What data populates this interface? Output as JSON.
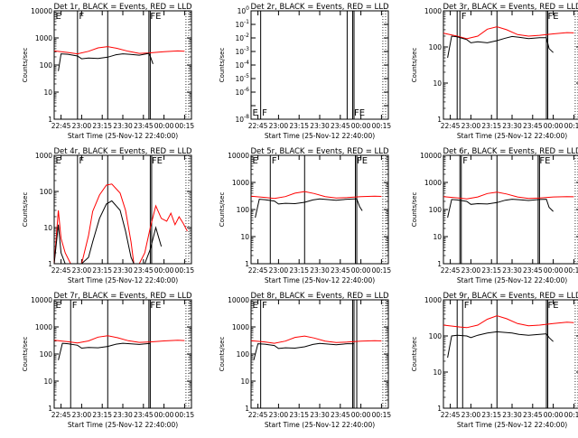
{
  "colors": {
    "events": "#000000",
    "lld": "#ff0000",
    "background": "#ffffff",
    "axis": "#000000"
  },
  "x_tick_labels": [
    "22:45",
    "23:00",
    "23:15",
    "23:30",
    "23:45",
    "00:00",
    "00:15"
  ],
  "x_axis_label": "Start Time (25-Nov-12 22:40:00)",
  "y_axis_label": "Counts/sec",
  "chart_data": [
    {
      "type": "line",
      "title": "Det 1r, BLACK = Events, RED = LLD",
      "xlabel": "Start Time (25-Nov-12 22:40:00)",
      "ylabel": "Counts/sec",
      "xlim_minutes": [
        0,
        100
      ],
      "ylim": [
        1,
        10000
      ],
      "yscale": "log",
      "ytick_labels": [
        "1",
        "10",
        "100",
        "1000",
        "10000"
      ],
      "markers": [
        {
          "label": "E",
          "minute": 0
        },
        {
          "label": "F",
          "minute": 17
        },
        {
          "label": "",
          "minute": 39
        },
        {
          "label": "FE",
          "minute": 69
        },
        {
          "label": "",
          "minute": 70
        }
      ],
      "series": [
        {
          "color": "lld",
          "x": [
            0,
            10,
            17,
            25,
            32,
            39,
            46,
            54,
            62,
            69,
            80,
            90,
            95
          ],
          "y": [
            330,
            290,
            260,
            320,
            430,
            480,
            410,
            320,
            270,
            280,
            310,
            330,
            320
          ]
        },
        {
          "color": "events",
          "x": [
            3,
            5,
            10,
            17,
            20,
            25,
            32,
            39,
            45,
            50,
            55,
            62,
            69,
            70,
            72
          ],
          "y": [
            60,
            260,
            250,
            215,
            170,
            180,
            175,
            195,
            240,
            260,
            250,
            230,
            270,
            210,
            110
          ]
        }
      ]
    },
    {
      "type": "line",
      "title": "Det 2r, BLACK = Events, RED = LLD",
      "xlabel": "Start Time (25-Nov-12 22:40:00)",
      "ylabel": "Counts/sec",
      "xlim_minutes": [
        0,
        100
      ],
      "ylim": [
        1e-08,
        1
      ],
      "yscale": "log",
      "ytick_labels": [
        "10^-8",
        "10^-6",
        "10^-5",
        "10^-4",
        "10^-3",
        "10^-2",
        "10^-1",
        "10^0"
      ],
      "markers": [
        {
          "label": "E",
          "minute": 0
        },
        {
          "label": "F",
          "minute": 7
        },
        {
          "label": "",
          "minute": 70
        },
        {
          "label": "FE",
          "minute": 74
        },
        {
          "label": "",
          "minute": 75
        }
      ],
      "series": []
    },
    {
      "type": "line",
      "title": "Det 3r, BLACK = Events, RED = LLD",
      "xlabel": "Start Time (25-Nov-12 22:40:00)",
      "ylabel": "Counts/sec",
      "xlim_minutes": [
        0,
        100
      ],
      "ylim": [
        1,
        1000
      ],
      "yscale": "log",
      "ytick_labels": [
        "1",
        "10",
        "100",
        "1000"
      ],
      "markers": [
        {
          "label": "",
          "minute": 10
        },
        {
          "label": "F",
          "minute": 12
        },
        {
          "label": "",
          "minute": 39
        },
        {
          "label": "FE",
          "minute": 75
        },
        {
          "label": "",
          "minute": 76
        }
      ],
      "series": [
        {
          "color": "lld",
          "x": [
            0,
            10,
            17,
            25,
            32,
            39,
            46,
            54,
            62,
            70,
            80,
            90,
            95
          ],
          "y": [
            240,
            200,
            170,
            200,
            310,
            360,
            300,
            220,
            200,
            210,
            230,
            250,
            245
          ]
        },
        {
          "color": "events",
          "x": [
            3,
            6,
            10,
            17,
            20,
            25,
            32,
            39,
            45,
            50,
            55,
            62,
            70,
            75,
            77,
            80
          ],
          "y": [
            50,
            200,
            190,
            160,
            130,
            140,
            130,
            150,
            175,
            195,
            185,
            170,
            180,
            180,
            90,
            70
          ]
        }
      ]
    },
    {
      "type": "line",
      "title": "Det 4r, BLACK = Events, RED = LLD",
      "xlabel": "Start Time (25-Nov-12 22:40:00)",
      "ylabel": "Counts/sec",
      "xlim_minutes": [
        0,
        100
      ],
      "ylim": [
        1,
        1000
      ],
      "yscale": "log",
      "ytick_labels": [
        "1",
        "10",
        "100",
        "1000"
      ],
      "markers": [
        {
          "label": "E",
          "minute": 0
        },
        {
          "label": "F",
          "minute": 17
        },
        {
          "label": "",
          "minute": 39
        },
        {
          "label": "FE",
          "minute": 70
        },
        {
          "label": "",
          "minute": 71
        }
      ],
      "series": [
        {
          "color": "lld",
          "x": [
            0,
            3,
            5,
            8,
            12,
            15,
            20,
            25,
            28,
            33,
            38,
            42,
            48,
            52,
            56,
            58,
            62,
            66,
            70,
            74,
            78,
            82,
            85,
            88,
            91,
            94,
            97
          ],
          "y": [
            1,
            30,
            5,
            2,
            1,
            1,
            1,
            6,
            28,
            80,
            150,
            160,
            90,
            30,
            4,
            1,
            1,
            2,
            10,
            40,
            18,
            15,
            25,
            12,
            20,
            13,
            8
          ]
        },
        {
          "color": "events",
          "x": [
            0,
            3,
            5,
            8,
            12,
            15,
            20,
            25,
            28,
            33,
            38,
            42,
            48,
            52,
            56,
            58,
            62,
            66,
            70,
            74,
            78
          ],
          "y": [
            1,
            12,
            2,
            1,
            1,
            1,
            1,
            1.5,
            4,
            18,
            45,
            55,
            30,
            8,
            1.5,
            1,
            1,
            1,
            2.5,
            10,
            3
          ]
        }
      ]
    },
    {
      "type": "line",
      "title": "Det 5r, BLACK = Events, RED = LLD",
      "xlabel": "Start Time (25-Nov-12 22:40:00)",
      "ylabel": "Counts/sec",
      "xlim_minutes": [
        0,
        100
      ],
      "ylim": [
        1,
        10000
      ],
      "yscale": "log",
      "ytick_labels": [
        "1",
        "10",
        "100",
        "1000",
        "10000"
      ],
      "markers": [
        {
          "label": "E",
          "minute": 0
        },
        {
          "label": "F",
          "minute": 14
        },
        {
          "label": "",
          "minute": 39
        },
        {
          "label": "FE",
          "minute": 76
        },
        {
          "label": "",
          "minute": 77
        }
      ],
      "series": [
        {
          "color": "lld",
          "x": [
            0,
            10,
            17,
            25,
            32,
            39,
            46,
            54,
            62,
            70,
            80,
            90,
            95
          ],
          "y": [
            310,
            280,
            255,
            300,
            400,
            460,
            390,
            300,
            265,
            275,
            300,
            310,
            305
          ]
        },
        {
          "color": "events",
          "x": [
            3,
            6,
            10,
            17,
            20,
            25,
            32,
            39,
            45,
            50,
            55,
            62,
            70,
            77,
            79,
            81
          ],
          "y": [
            50,
            240,
            230,
            205,
            160,
            170,
            165,
            185,
            225,
            245,
            235,
            220,
            240,
            250,
            130,
            90
          ]
        }
      ]
    },
    {
      "type": "line",
      "title": "Det 6r, BLACK = Events, RED = LLD",
      "xlabel": "Start Time (25-Nov-12 22:40:00)",
      "ylabel": "Counts/sec",
      "xlim_minutes": [
        0,
        100
      ],
      "ylim": [
        1,
        10000
      ],
      "yscale": "log",
      "ytick_labels": [
        "1",
        "10",
        "100",
        "1000",
        "10000"
      ],
      "markers": [
        {
          "label": "",
          "minute": 12
        },
        {
          "label": "F",
          "minute": 13
        },
        {
          "label": "",
          "minute": 39
        },
        {
          "label": "FE",
          "minute": 69
        },
        {
          "label": "",
          "minute": 70
        }
      ],
      "series": [
        {
          "color": "lld",
          "x": [
            0,
            10,
            17,
            25,
            32,
            39,
            46,
            54,
            62,
            70,
            80,
            90,
            95
          ],
          "y": [
            300,
            270,
            245,
            290,
            390,
            440,
            375,
            290,
            255,
            265,
            290,
            300,
            295
          ]
        },
        {
          "color": "events",
          "x": [
            3,
            6,
            10,
            17,
            20,
            25,
            32,
            39,
            45,
            50,
            55,
            62,
            70,
            75,
            77,
            80
          ],
          "y": [
            50,
            235,
            225,
            200,
            155,
            165,
            160,
            180,
            220,
            240,
            230,
            215,
            235,
            240,
            120,
            85
          ]
        }
      ]
    },
    {
      "type": "line",
      "title": "Det 7r, BLACK = Events, RED = LLD",
      "xlabel": "Start Time (25-Nov-12 22:40:00)",
      "ylabel": "Counts/sec",
      "xlim_minutes": [
        0,
        100
      ],
      "ylim": [
        1,
        10000
      ],
      "yscale": "log",
      "ytick_labels": [
        "1",
        "10",
        "100",
        "1000",
        "10000"
      ],
      "markers": [
        {
          "label": "E",
          "minute": 0
        },
        {
          "label": "F",
          "minute": 12
        },
        {
          "label": "",
          "minute": 39
        },
        {
          "label": "FE",
          "minute": 69
        },
        {
          "label": "",
          "minute": 70
        }
      ],
      "series": [
        {
          "color": "lld",
          "x": [
            0,
            10,
            17,
            25,
            32,
            39,
            46,
            54,
            62,
            70,
            80,
            90,
            95
          ],
          "y": [
            320,
            285,
            255,
            305,
            420,
            470,
            400,
            310,
            270,
            280,
            305,
            320,
            315
          ]
        },
        {
          "color": "events",
          "x": [
            3,
            6,
            10,
            17,
            20,
            25,
            32,
            39,
            45,
            50,
            55,
            62,
            70
          ],
          "y": [
            60,
            250,
            240,
            210,
            165,
            175,
            170,
            190,
            230,
            250,
            240,
            225,
            245
          ]
        }
      ]
    },
    {
      "type": "line",
      "title": "Det 8r, BLACK = Events, RED = LLD",
      "xlabel": "Start Time (25-Nov-12 22:40:00)",
      "ylabel": "Counts/sec",
      "xlim_minutes": [
        0,
        100
      ],
      "ylim": [
        1,
        10000
      ],
      "yscale": "log",
      "ytick_labels": [
        "1",
        "10",
        "100",
        "1000",
        "10000"
      ],
      "markers": [
        {
          "label": "E",
          "minute": 0
        },
        {
          "label": "F",
          "minute": 7
        },
        {
          "label": "",
          "minute": 74
        },
        {
          "label": "",
          "minute": 75
        },
        {
          "label": "",
          "minute": 77
        }
      ],
      "series": [
        {
          "color": "lld",
          "x": [
            0,
            10,
            17,
            25,
            32,
            39,
            46,
            54,
            62,
            70,
            80,
            90,
            95
          ],
          "y": [
            310,
            280,
            250,
            300,
            410,
            460,
            390,
            300,
            265,
            275,
            300,
            310,
            305
          ]
        },
        {
          "color": "events",
          "x": [
            2,
            5,
            10,
            17,
            20,
            25,
            32,
            39,
            45,
            50,
            55,
            62,
            70,
            75
          ],
          "y": [
            60,
            240,
            230,
            205,
            160,
            170,
            165,
            185,
            225,
            245,
            235,
            220,
            240,
            240
          ]
        }
      ]
    },
    {
      "type": "line",
      "title": "Det 9r, BLACK = Events, RED = LLD",
      "xlabel": "Start Time (25-Nov-12 22:40:00)",
      "ylabel": "Counts/sec",
      "xlim_minutes": [
        0,
        100
      ],
      "ylim": [
        1,
        1000
      ],
      "yscale": "log",
      "ytick_labels": [
        "1",
        "10",
        "100",
        "1000"
      ],
      "markers": [
        {
          "label": "",
          "minute": 10
        },
        {
          "label": "F",
          "minute": 14
        },
        {
          "label": "",
          "minute": 39
        },
        {
          "label": "FE",
          "minute": 75
        },
        {
          "label": "",
          "minute": 76
        }
      ],
      "series": [
        {
          "color": "lld",
          "x": [
            0,
            10,
            17,
            25,
            32,
            39,
            46,
            54,
            62,
            70,
            80,
            90,
            95
          ],
          "y": [
            200,
            180,
            170,
            200,
            290,
            360,
            300,
            220,
            190,
            200,
            220,
            240,
            235
          ]
        },
        {
          "color": "events",
          "x": [
            3,
            6,
            10,
            17,
            20,
            25,
            32,
            39,
            45,
            50,
            55,
            62,
            70,
            75,
            77,
            80
          ],
          "y": [
            25,
            100,
            105,
            100,
            90,
            105,
            120,
            130,
            125,
            120,
            110,
            105,
            110,
            115,
            90,
            70
          ]
        }
      ]
    }
  ]
}
